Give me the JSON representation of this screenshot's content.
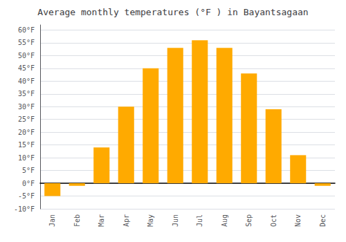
{
  "chart_data": {
    "type": "bar",
    "title": "Average monthly temperatures (°F ) in Bayantsagaan",
    "categories": [
      "Jan",
      "Feb",
      "Mar",
      "Apr",
      "May",
      "Jun",
      "Jul",
      "Aug",
      "Sep",
      "Oct",
      "Nov",
      "Dec"
    ],
    "values": [
      -5,
      -1,
      14,
      30,
      45,
      53,
      56,
      53,
      43,
      29,
      11,
      -1
    ],
    "color": "#FFAA00",
    "ylim": [
      -10,
      62
    ],
    "yticks": [
      {
        "value": -10,
        "label": "-10°F"
      },
      {
        "value": -5,
        "label": "-5°F"
      },
      {
        "value": 0,
        "label": "0°F"
      },
      {
        "value": 5,
        "label": "5°F"
      },
      {
        "value": 10,
        "label": "10°F"
      },
      {
        "value": 15,
        "label": "15°F"
      },
      {
        "value": 20,
        "label": "20°F"
      },
      {
        "value": 25,
        "label": "25°F"
      },
      {
        "value": 30,
        "label": "30°F"
      },
      {
        "value": 35,
        "label": "35°F"
      },
      {
        "value": 40,
        "label": "40°F"
      },
      {
        "value": 45,
        "label": "45°F"
      },
      {
        "value": 50,
        "label": "50°F"
      },
      {
        "value": 55,
        "label": "55°F"
      },
      {
        "value": 60,
        "label": "60°F"
      }
    ],
    "grid": true
  }
}
